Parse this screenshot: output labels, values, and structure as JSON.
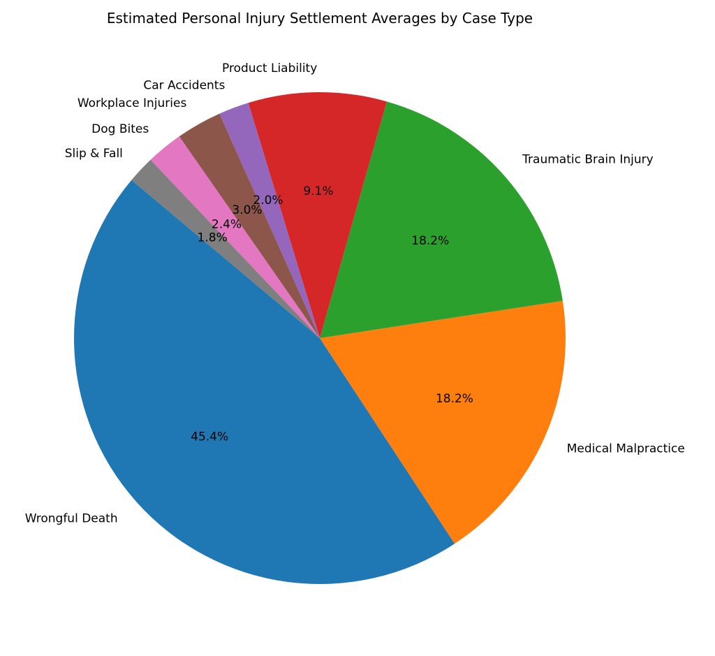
{
  "chart_data": {
    "type": "pie",
    "title": "Estimated Personal Injury Settlement Averages by Case Type",
    "start_angle_deg": 140,
    "direction": "counterclockwise",
    "slices": [
      {
        "label": "Wrongful Death",
        "percent": 45.4,
        "pct_label": "45.4%",
        "color": "#1f77b4"
      },
      {
        "label": "Medical Malpractice",
        "percent": 18.2,
        "pct_label": "18.2%",
        "color": "#ff7f0e"
      },
      {
        "label": "Traumatic Brain Injury",
        "percent": 18.2,
        "pct_label": "18.2%",
        "color": "#2ca02c"
      },
      {
        "label": "Product Liability",
        "percent": 9.1,
        "pct_label": "9.1%",
        "color": "#d62728"
      },
      {
        "label": "Car Accidents",
        "percent": 2.0,
        "pct_label": "2.0%",
        "color": "#9467bd"
      },
      {
        "label": "Workplace Injuries",
        "percent": 3.0,
        "pct_label": "3.0%",
        "color": "#8c564b"
      },
      {
        "label": "Dog Bites",
        "percent": 2.4,
        "pct_label": "2.4%",
        "color": "#e377c2"
      },
      {
        "label": "Slip & Fall",
        "percent": 1.8,
        "pct_label": "1.8%",
        "color": "#7f7f7f"
      }
    ]
  }
}
